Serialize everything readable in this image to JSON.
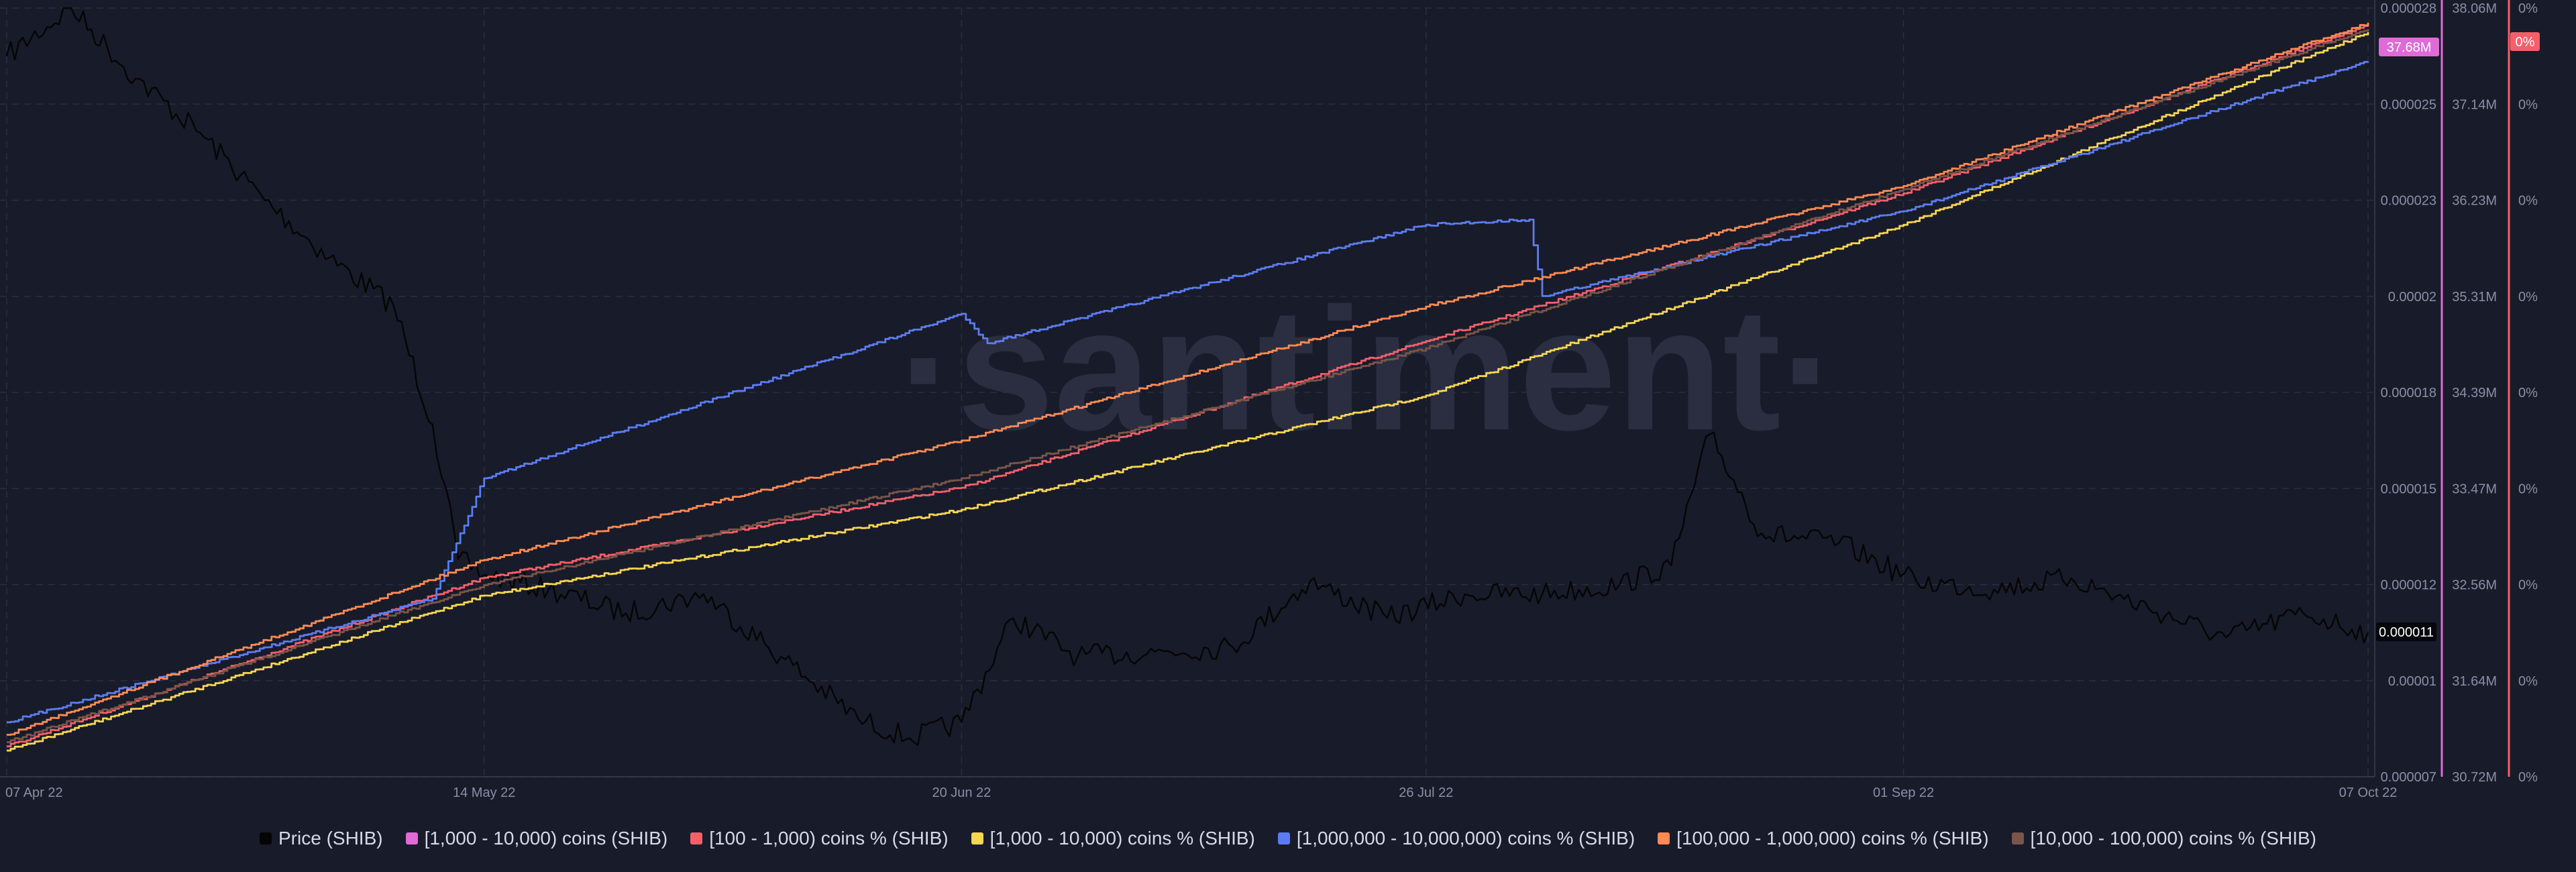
{
  "watermark": "·santiment·",
  "colors": {
    "background": "#181b29",
    "grid": "#2a2e40",
    "price": "#050505",
    "pink": "#e06ad6",
    "red": "#f45f6a",
    "yellow": "#f6d552",
    "blue": "#5b7cf0",
    "orange": "#ff8a52",
    "brown": "#7a5548"
  },
  "chart_data": {
    "type": "line",
    "x_ticks": [
      "07 Apr 22",
      "14 May 22",
      "20 Jun 22",
      "26 Jul 22",
      "01 Sep 22",
      "07 Oct 22"
    ],
    "y_axis_price": {
      "ticks": [
        "0.000028",
        "0.000025",
        "0.000023",
        "0.00002",
        "0.000018",
        "0.000015",
        "0.000012",
        "0.00001",
        "0.000007"
      ],
      "current": "0.000011"
    },
    "y_axis_coins": {
      "ticks": [
        "38.06M",
        "37.14M",
        "36.23M",
        "35.31M",
        "34.39M",
        "33.47M",
        "32.56M",
        "31.64M",
        "30.72M"
      ],
      "current": "37.68M"
    },
    "y_axis_pct": {
      "ticks": [
        "0%",
        "0%",
        "0%",
        "0%",
        "0%",
        "0%",
        "0%",
        "0%",
        "0%"
      ],
      "current": "0%"
    },
    "grid": true,
    "legend_position": "bottom",
    "series": [
      {
        "name": "Price (SHIB)",
        "color": "#050505",
        "x": [
          "07 Apr 22",
          "12 Apr 22",
          "17 Apr 22",
          "22 Apr 22",
          "27 Apr 22",
          "02 May 22",
          "07 May 22",
          "10 May 22",
          "12 May 22",
          "14 May 22",
          "19 May 22",
          "25 May 22",
          "31 May 22",
          "06 Jun 22",
          "12 Jun 22",
          "16 Jun 22",
          "20 Jun 22",
          "24 Jun 22",
          "29 Jun 22",
          "05 Jul 22",
          "11 Jul 22",
          "17 Jul 22",
          "23 Jul 22",
          "29 Jul 22",
          "04 Aug 22",
          "10 Aug 22",
          "14 Aug 22",
          "17 Aug 22",
          "21 Aug 22",
          "27 Aug 22",
          "02 Sep 22",
          "08 Sep 22",
          "14 Sep 22",
          "20 Sep 22",
          "26 Sep 22",
          "02 Oct 22",
          "07 Oct 22"
        ],
        "values": [
          2.65e-05,
          2.81e-05,
          2.58e-05,
          2.44e-05,
          2.3e-05,
          2.12e-05,
          1.98e-05,
          1.7e-05,
          1.28e-05,
          1.23e-05,
          1.19e-05,
          1.14e-05,
          1.18e-05,
          1.05e-05,
          8.8e-06,
          8.2e-06,
          8.7e-06,
          1.13e-05,
          1.05e-05,
          1.06e-05,
          1.07e-05,
          1.21e-05,
          1.13e-05,
          1.18e-05,
          1.18e-05,
          1.2e-05,
          1.26e-05,
          1.67e-05,
          1.36e-05,
          1.33e-05,
          1.21e-05,
          1.19e-05,
          1.22e-05,
          1.15e-05,
          1.09e-05,
          1.14e-05,
          1.1e-05
        ]
      },
      {
        "name": "[1,000 - 10,000) coins (SHIB)",
        "color": "#e06ad6",
        "x": [],
        "values": []
      },
      {
        "name": "[100 - 1,000) coins % (SHIB)",
        "color": "#f45f6a",
        "x": [
          "07 Apr 22",
          "14 May 22",
          "20 Jun 22",
          "26 Jul 22",
          "01 Sep 22",
          "07 Oct 22"
        ],
        "values": [
          31.01,
          32.62,
          33.48,
          34.88,
          36.29,
          37.9
        ]
      },
      {
        "name": "[1,000 - 10,000) coins % (SHIB)",
        "color": "#f6d552",
        "x": [
          "07 Apr 22",
          "14 May 22",
          "20 Jun 22",
          "26 Jul 22",
          "01 Sep 22",
          "07 Oct 22"
        ],
        "values": [
          30.97,
          32.45,
          33.27,
          34.36,
          35.99,
          37.83
        ]
      },
      {
        "name": "[1,000,000 - 10,000,000) coins % (SHIB)",
        "color": "#5b7cf0",
        "x": [
          "07 Apr 22",
          "10 May 22",
          "14 May 22",
          "20 Jun 22",
          "22 Jun 22",
          "26 Jul 22",
          "03 Aug 22",
          "04 Aug 22",
          "01 Sep 22",
          "07 Oct 22"
        ],
        "values": [
          31.24,
          32.42,
          33.57,
          35.14,
          34.86,
          35.99,
          36.04,
          35.31,
          36.12,
          37.55
        ]
      },
      {
        "name": "[100,000  - 1,000,000) coins % (SHIB)",
        "color": "#ff8a52",
        "x": [
          "07 Apr 22",
          "14 May 22",
          "20 Jun 22",
          "26 Jul 22",
          "01 Sep 22",
          "07 Oct 22"
        ],
        "values": [
          31.12,
          32.79,
          33.93,
          35.21,
          36.36,
          37.92
        ]
      },
      {
        "name": "[10,000 - 100,000) coins % (SHIB)",
        "color": "#7a5548",
        "x": [
          "07 Apr 22",
          "14 May 22",
          "20 Jun 22",
          "26 Jul 22",
          "01 Sep 22",
          "07 Oct 22"
        ],
        "values": [
          31.05,
          32.55,
          33.57,
          34.81,
          36.33,
          37.86
        ]
      }
    ]
  },
  "legend": {
    "items": [
      {
        "label": "Price (SHIB)",
        "color": "#050505"
      },
      {
        "label": "[1,000 - 10,000) coins (SHIB)",
        "color": "#e06ad6"
      },
      {
        "label": "[100 - 1,000) coins % (SHIB)",
        "color": "#f45f6a"
      },
      {
        "label": "[1,000 - 10,000) coins % (SHIB)",
        "color": "#f6d552"
      },
      {
        "label": "[1,000,000 - 10,000,000) coins % (SHIB)",
        "color": "#5b7cf0"
      },
      {
        "label": "[100,000  - 1,000,000) coins % (SHIB)",
        "color": "#ff8a52"
      },
      {
        "label": "[10,000 - 100,000) coins % (SHIB)",
        "color": "#7a5548"
      }
    ]
  }
}
